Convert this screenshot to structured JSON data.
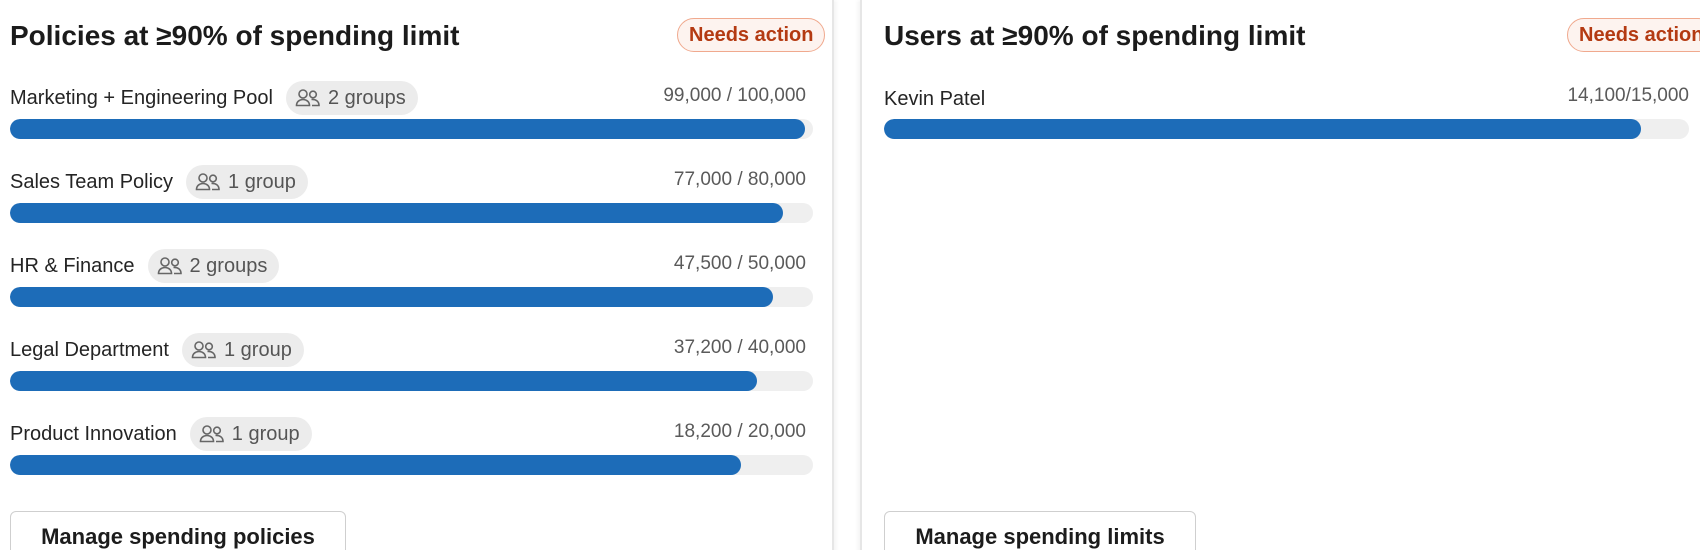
{
  "policies_card": {
    "title": "Policies at ≥90% of spending limit",
    "badge": "Needs action",
    "button_label": "Manage spending policies",
    "items": [
      {
        "name": "Marketing + Engineering Pool",
        "groups": "2 groups",
        "value_text": "99,000 / 100,000",
        "spent": 99000,
        "limit": 100000
      },
      {
        "name": "Sales Team Policy",
        "groups": "1 group",
        "value_text": "77,000 / 80,000",
        "spent": 77000,
        "limit": 80000
      },
      {
        "name": "HR & Finance",
        "groups": "2 groups",
        "value_text": "47,500 / 50,000",
        "spent": 47500,
        "limit": 50000
      },
      {
        "name": "Legal Department",
        "groups": "1 group",
        "value_text": "37,200 / 40,000",
        "spent": 37200,
        "limit": 40000
      },
      {
        "name": "Product Innovation",
        "groups": "1 group",
        "value_text": "18,200 / 20,000",
        "spent": 18200,
        "limit": 20000
      }
    ]
  },
  "users_card": {
    "title": "Users at ≥90% of spending limit",
    "badge": "Needs action",
    "button_label": "Manage spending limits",
    "items": [
      {
        "name": "Kevin Patel",
        "value_text": "14,100/15,000",
        "spent": 14100,
        "limit": 15000
      }
    ]
  },
  "icons": {
    "group": "people-group-icon"
  },
  "colors": {
    "bar_fill": "#1d6cb8",
    "bar_track": "#efefef",
    "badge_text": "#b43a12",
    "badge_border": "#f0a98e"
  }
}
